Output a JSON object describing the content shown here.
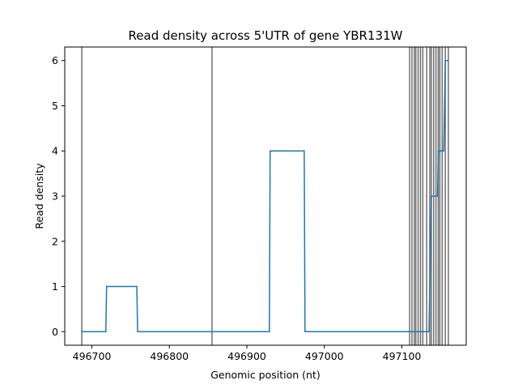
{
  "chart_data": {
    "type": "line",
    "title": "Read density across 5'UTR of gene YBR131W",
    "xlabel": "Genomic position (nt)",
    "ylabel": "Read density",
    "xlim": [
      496665,
      497183
    ],
    "ylim": [
      -0.3,
      6.3
    ],
    "xticks": [
      496700,
      496800,
      496900,
      497000,
      497100
    ],
    "xtick_labels": [
      "496700",
      "496800",
      "496900",
      "497000",
      "497100"
    ],
    "yticks": [
      0,
      1,
      2,
      3,
      4,
      5,
      6
    ],
    "ytick_labels": [
      "0",
      "1",
      "2",
      "3",
      "4",
      "5",
      "6"
    ],
    "grid": false,
    "series": [
      {
        "color": "#1f77b4",
        "x": [
          496687,
          496718,
          496719,
          496758,
          496759,
          496929,
          496930,
          496974,
          496975,
          497135,
          497136,
          497137,
          497138,
          497144,
          497145,
          497146,
          497147,
          497153,
          497154,
          497155,
          497156,
          497159,
          497160
        ],
        "y": [
          0,
          0,
          1,
          1,
          0,
          0,
          4,
          4,
          0,
          0,
          1,
          2,
          3,
          3,
          3,
          3,
          4,
          4,
          4,
          5,
          6,
          6,
          6
        ]
      }
    ],
    "vlines": {
      "color": "#333333",
      "x": [
        496687,
        496855,
        497110,
        497113,
        497116,
        497118,
        497121,
        497124,
        497127,
        497132,
        497136,
        497138,
        497141,
        497144,
        497147,
        497149,
        497152,
        497156,
        497160
      ]
    }
  }
}
